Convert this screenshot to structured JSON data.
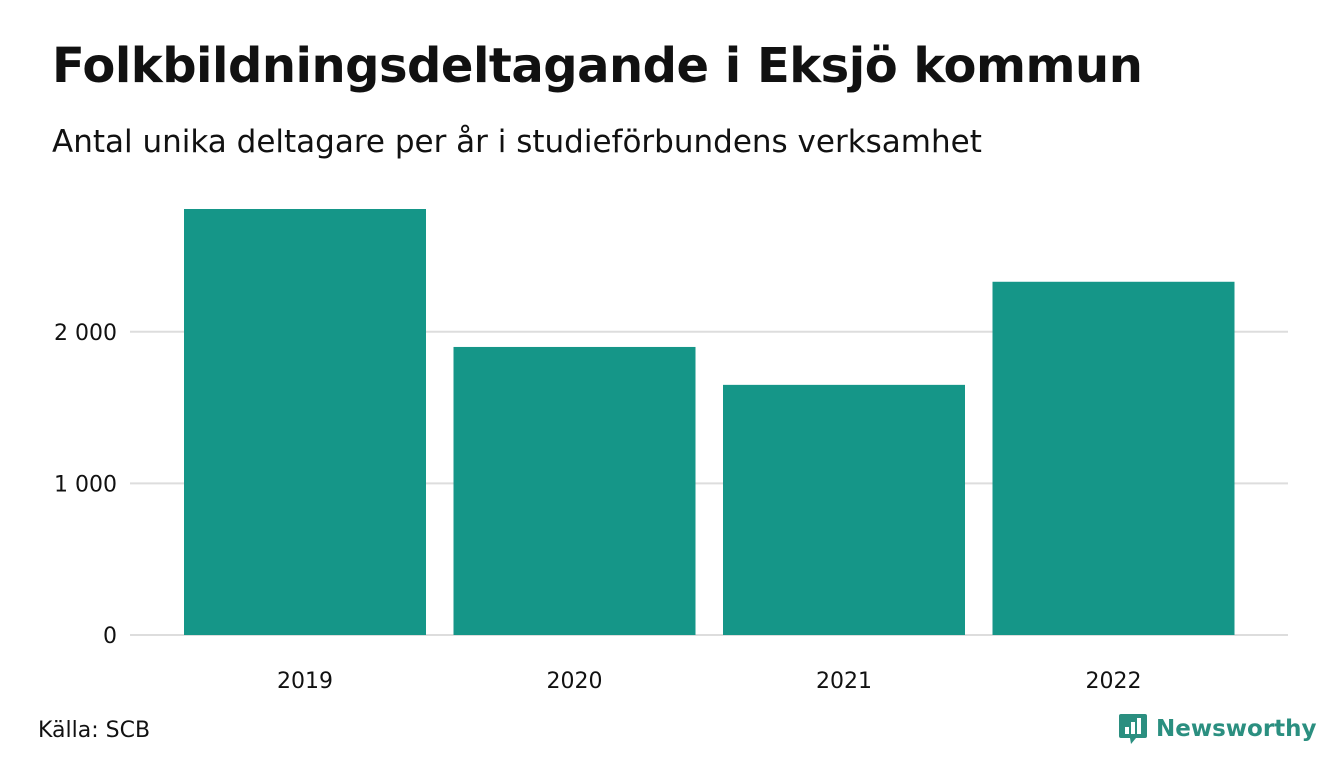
{
  "header": {
    "title": "Folkbildningsdeltagande i Eksjö kommun",
    "subtitle": "Antal unika deltagare per år i studieförbundens verksamhet"
  },
  "footer": {
    "source": "Källa: SCB",
    "brand": "Newsworthy",
    "brand_icon": "newsworthy-logo-icon"
  },
  "colors": {
    "bar": "#159688",
    "grid": "#dddddd",
    "brand": "#2b8f80"
  },
  "chart_data": {
    "type": "bar",
    "categories": [
      "2019",
      "2020",
      "2021",
      "2022"
    ],
    "values": [
      2810,
      1900,
      1650,
      2330
    ],
    "ylim": [
      0,
      2810
    ],
    "yticks": [
      0,
      1000,
      2000
    ],
    "ytick_labels": [
      "0",
      "1 000",
      "2 000"
    ],
    "grid": true,
    "title": "Folkbildningsdeltagande i Eksjö kommun",
    "subtitle": "Antal unika deltagare per år i studieförbundens verksamhet",
    "xlabel": "",
    "ylabel": ""
  }
}
